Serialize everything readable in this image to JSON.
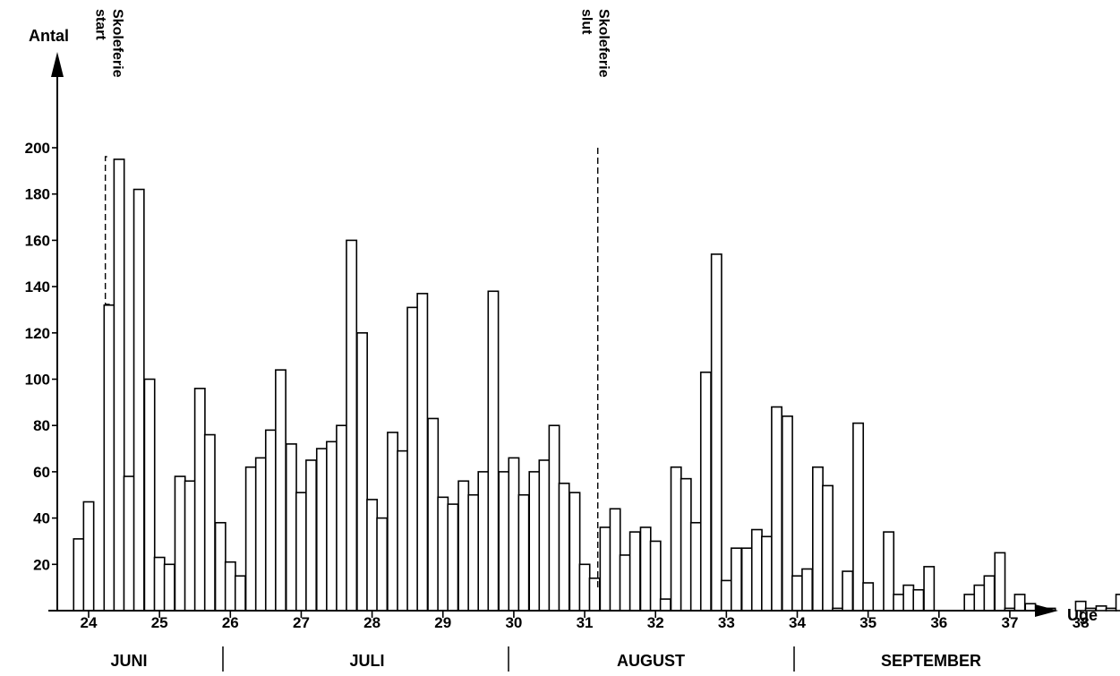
{
  "chart_data": {
    "type": "bar",
    "title": "",
    "ylabel": "Antal",
    "xlabel": "Uge",
    "ylim": [
      0,
      200
    ],
    "xlim": [
      23.6,
      38.85
    ],
    "yticks": [
      20,
      40,
      60,
      80,
      100,
      120,
      140,
      160,
      180,
      200
    ],
    "week_ticks": [
      24,
      25,
      26,
      27,
      28,
      29,
      30,
      31,
      32,
      33,
      34,
      35,
      36,
      37,
      38
    ],
    "months": [
      "JUNI",
      "JULI",
      "AUGUST",
      "SEPTEMBER"
    ],
    "annotations": [
      {
        "week": 24.4,
        "text": [
          "Skoleferie",
          "start"
        ]
      },
      {
        "week": 31.4,
        "text": [
          "Skoleferie",
          "slut"
        ]
      }
    ],
    "bar_width_weeks": 0.142857,
    "bars": [
      {
        "x": 23.86,
        "y": 31
      },
      {
        "x": 24.0,
        "y": 47
      },
      {
        "x": 24.29,
        "y": 132
      },
      {
        "x": 24.43,
        "y": 195
      },
      {
        "x": 24.57,
        "y": 58
      },
      {
        "x": 24.71,
        "y": 182
      },
      {
        "x": 24.86,
        "y": 100
      },
      {
        "x": 25.0,
        "y": 23
      },
      {
        "x": 25.14,
        "y": 20
      },
      {
        "x": 25.29,
        "y": 58
      },
      {
        "x": 25.43,
        "y": 56
      },
      {
        "x": 25.57,
        "y": 96
      },
      {
        "x": 25.71,
        "y": 76
      },
      {
        "x": 25.86,
        "y": 38
      },
      {
        "x": 26.0,
        "y": 21
      },
      {
        "x": 26.14,
        "y": 15
      },
      {
        "x": 26.29,
        "y": 62
      },
      {
        "x": 26.43,
        "y": 66
      },
      {
        "x": 26.57,
        "y": 78
      },
      {
        "x": 26.71,
        "y": 104
      },
      {
        "x": 26.86,
        "y": 72
      },
      {
        "x": 27.0,
        "y": 51
      },
      {
        "x": 27.14,
        "y": 65
      },
      {
        "x": 27.29,
        "y": 70
      },
      {
        "x": 27.43,
        "y": 73
      },
      {
        "x": 27.57,
        "y": 80
      },
      {
        "x": 27.71,
        "y": 160
      },
      {
        "x": 27.86,
        "y": 120
      },
      {
        "x": 28.0,
        "y": 48
      },
      {
        "x": 28.14,
        "y": 40
      },
      {
        "x": 28.29,
        "y": 77
      },
      {
        "x": 28.43,
        "y": 69
      },
      {
        "x": 28.57,
        "y": 131
      },
      {
        "x": 28.71,
        "y": 137
      },
      {
        "x": 28.86,
        "y": 83
      },
      {
        "x": 29.0,
        "y": 49
      },
      {
        "x": 29.14,
        "y": 46
      },
      {
        "x": 29.29,
        "y": 56
      },
      {
        "x": 29.43,
        "y": 50
      },
      {
        "x": 29.57,
        "y": 60
      },
      {
        "x": 29.71,
        "y": 138
      },
      {
        "x": 29.86,
        "y": 60
      },
      {
        "x": 30.0,
        "y": 66
      },
      {
        "x": 30.14,
        "y": 50
      },
      {
        "x": 30.29,
        "y": 60
      },
      {
        "x": 30.43,
        "y": 65
      },
      {
        "x": 30.57,
        "y": 80
      },
      {
        "x": 30.71,
        "y": 55
      },
      {
        "x": 30.86,
        "y": 51
      },
      {
        "x": 31.0,
        "y": 20
      },
      {
        "x": 31.14,
        "y": 14
      },
      {
        "x": 31.29,
        "y": 36
      },
      {
        "x": 31.43,
        "y": 44
      },
      {
        "x": 31.57,
        "y": 24
      },
      {
        "x": 31.71,
        "y": 34
      },
      {
        "x": 31.86,
        "y": 36
      },
      {
        "x": 32.0,
        "y": 30
      },
      {
        "x": 32.14,
        "y": 5
      },
      {
        "x": 32.29,
        "y": 62
      },
      {
        "x": 32.43,
        "y": 57
      },
      {
        "x": 32.57,
        "y": 38
      },
      {
        "x": 32.71,
        "y": 103
      },
      {
        "x": 32.86,
        "y": 154
      },
      {
        "x": 33.0,
        "y": 13
      },
      {
        "x": 33.14,
        "y": 27
      },
      {
        "x": 33.29,
        "y": 27
      },
      {
        "x": 33.43,
        "y": 35
      },
      {
        "x": 33.57,
        "y": 32
      },
      {
        "x": 33.71,
        "y": 88
      },
      {
        "x": 33.86,
        "y": 84
      },
      {
        "x": 34.0,
        "y": 15
      },
      {
        "x": 34.14,
        "y": 18
      },
      {
        "x": 34.29,
        "y": 62
      },
      {
        "x": 34.43,
        "y": 54
      },
      {
        "x": 34.57,
        "y": 1
      },
      {
        "x": 34.71,
        "y": 17
      },
      {
        "x": 34.86,
        "y": 81
      },
      {
        "x": 35.0,
        "y": 12
      },
      {
        "x": 35.29,
        "y": 34
      },
      {
        "x": 35.43,
        "y": 7
      },
      {
        "x": 35.57,
        "y": 11
      },
      {
        "x": 35.71,
        "y": 9
      },
      {
        "x": 35.86,
        "y": 19
      },
      {
        "x": 36.43,
        "y": 7
      },
      {
        "x": 36.57,
        "y": 11
      },
      {
        "x": 36.71,
        "y": 15
      },
      {
        "x": 36.86,
        "y": 25
      },
      {
        "x": 37.0,
        "y": 1
      },
      {
        "x": 37.14,
        "y": 7
      },
      {
        "x": 37.29,
        "y": 3
      },
      {
        "x": 37.57,
        "y": 1
      },
      {
        "x": 38.0,
        "y": 4
      },
      {
        "x": 38.14,
        "y": 1
      },
      {
        "x": 38.29,
        "y": 2
      },
      {
        "x": 38.43,
        "y": 1
      },
      {
        "x": 38.57,
        "y": 7
      }
    ]
  }
}
